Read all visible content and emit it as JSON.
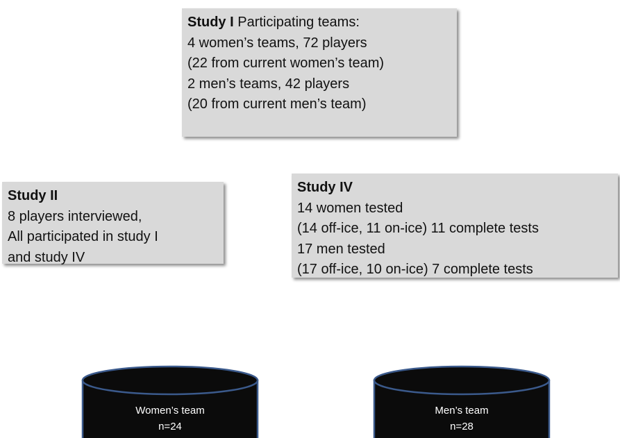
{
  "nodes": [
    {
      "heading": "Study I",
      "heading_text": "Participating teams:",
      "lines": [
        "4 women’s teams, 72 players",
        "(22 from current women’s team)",
        "2 men’s teams, 42 players",
        "(20 from current men’s team)"
      ]
    },
    {
      "heading": "Study II",
      "lines": [
        "8 players interviewed,",
        "All participated in study I",
        "and study IV"
      ]
    },
    {
      "heading": "Study IV",
      "lines": [
        "14 women tested",
        "(14 off-ice, 11 on-ice) 11 complete tests",
        "17 men tested",
        "(17 off-ice, 10 on-ice) 7 complete tests"
      ]
    }
  ],
  "groups": [
    {
      "label": "Women’s team",
      "count": "n=24"
    },
    {
      "label": "Men’s team",
      "count": "n=28"
    }
  ]
}
